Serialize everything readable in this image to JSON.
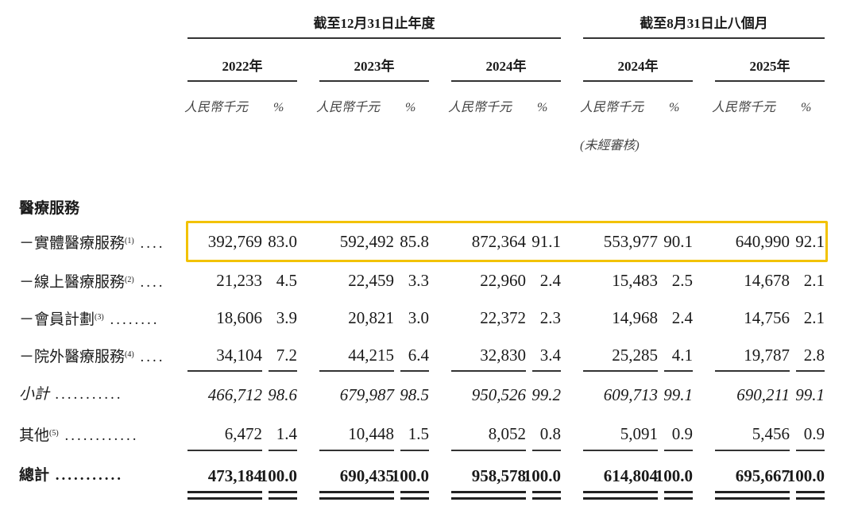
{
  "header": {
    "group_fy": "截至12月31日止年度",
    "group_8m": "截至8月31日止八個月",
    "years": [
      "2022年",
      "2023年",
      "2024年",
      "2024年",
      "2025年"
    ],
    "unit_rmb": "人民幣千元",
    "unit_pct": "%",
    "unaudited": "(未經審核)"
  },
  "section_title": "醫療服務",
  "rows": [
    {
      "label": "－實體醫療服務",
      "note": "(1)",
      "dots": "....",
      "values": [
        "392,769",
        "83.0",
        "592,492",
        "85.8",
        "872,364",
        "91.1",
        "553,977",
        "90.1",
        "640,990",
        "92.1"
      ],
      "highlighted": true
    },
    {
      "label": "－線上醫療服務",
      "note": "(2)",
      "dots": "....",
      "values": [
        "21,233",
        "4.5",
        "22,459",
        "3.3",
        "22,960",
        "2.4",
        "15,483",
        "2.5",
        "14,678",
        "2.1"
      ]
    },
    {
      "label": "－會員計劃",
      "note": "(3)",
      "dots": "........",
      "values": [
        "18,606",
        "3.9",
        "20,821",
        "3.0",
        "22,372",
        "2.3",
        "14,968",
        "2.4",
        "14,756",
        "2.1"
      ]
    },
    {
      "label": "－院外醫療服務",
      "note": "(4)",
      "dots": "....",
      "values": [
        "34,104",
        "7.2",
        "44,215",
        "6.4",
        "32,830",
        "3.4",
        "25,285",
        "4.1",
        "19,787",
        "2.8"
      ]
    },
    {
      "label": "小計",
      "note": "",
      "dots": "...........",
      "values": [
        "466,712",
        "98.6",
        "679,987",
        "98.5",
        "950,526",
        "99.2",
        "609,713",
        "99.1",
        "690,211",
        "99.1"
      ],
      "style": "italic"
    },
    {
      "label": "其他",
      "note": "(5)",
      "dots": "............",
      "values": [
        "6,472",
        "1.4",
        "10,448",
        "1.5",
        "8,052",
        "0.8",
        "5,091",
        "0.9",
        "5,456",
        "0.9"
      ]
    },
    {
      "label": "總計",
      "note": "",
      "dots": "...........",
      "values": [
        "473,184",
        "100.0",
        "690,435",
        "100.0",
        "958,578",
        "100.0",
        "614,804",
        "100.0",
        "695,667",
        "100.0"
      ],
      "style": "bold"
    }
  ],
  "colors": {
    "highlight": "#f2c200",
    "text": "#1a1a1a"
  }
}
